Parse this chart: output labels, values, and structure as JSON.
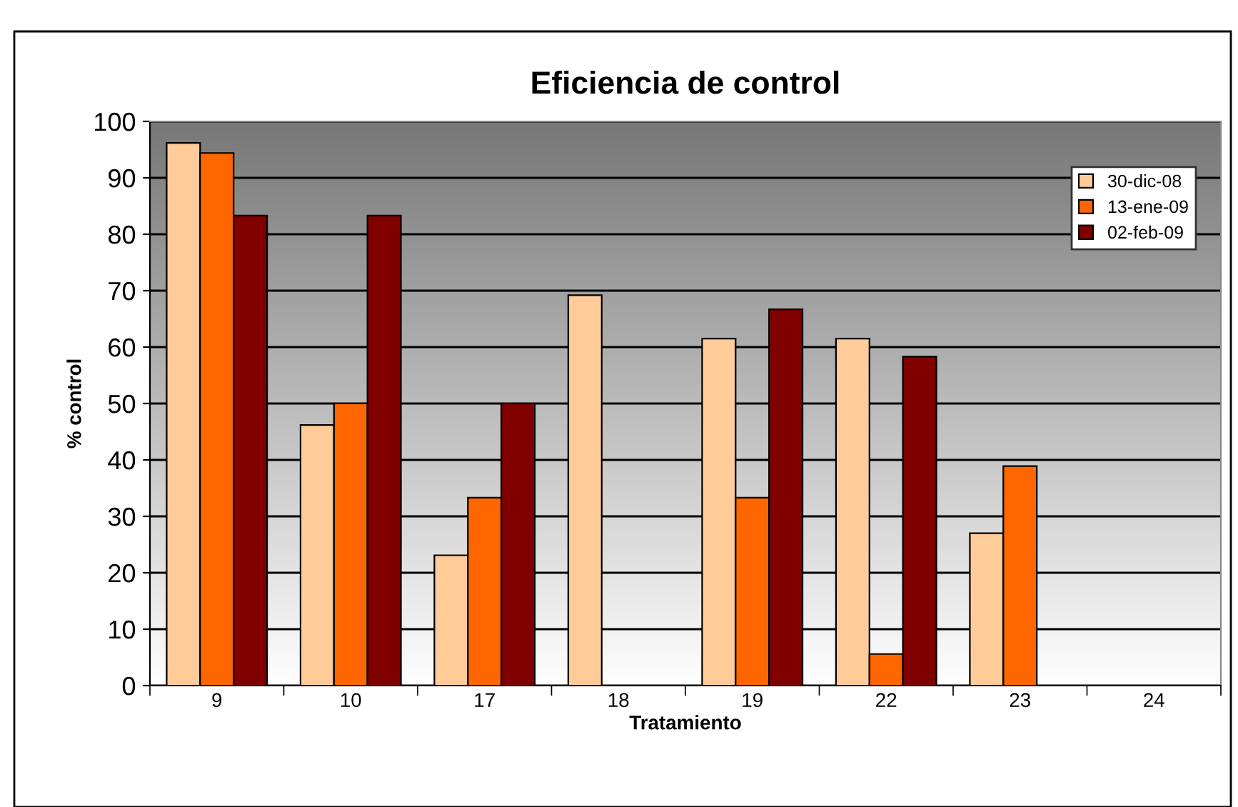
{
  "chart_data": {
    "type": "bar",
    "title": "Eficiencia de control",
    "xlabel": "Tratamiento",
    "ylabel": "% control",
    "categories": [
      "9",
      "10",
      "17",
      "18",
      "19",
      "22",
      "23",
      "24"
    ],
    "series": [
      {
        "name": "30-dic-08",
        "color": "#ffcc99",
        "values": [
          96.2,
          46.2,
          23.1,
          69.2,
          61.5,
          61.5,
          27.0,
          null
        ]
      },
      {
        "name": "13-ene-09",
        "color": "#ff6600",
        "values": [
          94.4,
          50.0,
          33.3,
          null,
          33.3,
          5.6,
          38.9,
          null
        ]
      },
      {
        "name": "02-feb-09",
        "color": "#800000",
        "values": [
          83.3,
          83.3,
          50.0,
          null,
          66.7,
          58.3,
          null,
          null
        ]
      }
    ],
    "ylim": [
      0,
      100
    ],
    "yticks": [
      0,
      10,
      20,
      30,
      40,
      50,
      60,
      70,
      80,
      90,
      100
    ],
    "grid": "y",
    "legend": "top right"
  }
}
